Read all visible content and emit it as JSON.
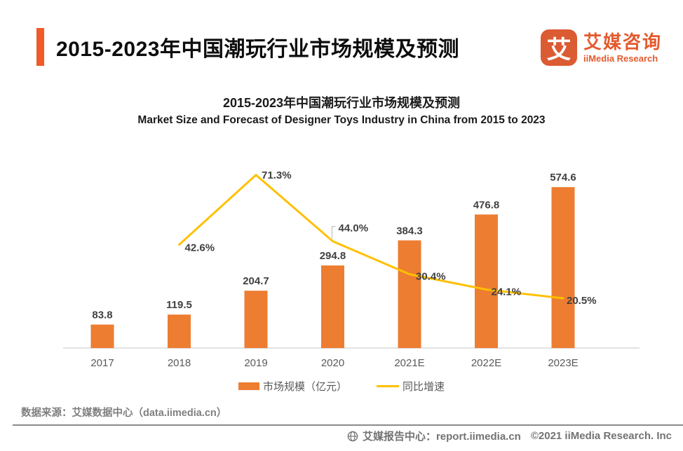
{
  "header": {
    "title": "2015-2023年中国潮玩行业市场规模及预测",
    "accent_color": "#F15A29",
    "logo": {
      "mark": "艾",
      "mark_color": "#DB5B33",
      "name_cn": "艾媒咨询",
      "name_en": "iiMedia Research",
      "text_color": "#E35A2E"
    }
  },
  "chart": {
    "title_cn": "2015-2023年中国潮玩行业市场规模及预测",
    "title_en": "Market Size and Forecast of Designer Toys Industry in China from 2015 to 2023",
    "legend": [
      {
        "label": "市场规模（亿元）",
        "type": "bar",
        "color": "#ED7D31"
      },
      {
        "label": "同比增速",
        "type": "line",
        "color": "#FFC000"
      }
    ]
  },
  "chart_data": {
    "type": "bar+line",
    "categories": [
      "2017",
      "2018",
      "2019",
      "2020",
      "2021E",
      "2022E",
      "2023E"
    ],
    "series": [
      {
        "name": "市场规模（亿元）",
        "type": "bar",
        "color": "#ED7D31",
        "values": [
          83.8,
          119.5,
          204.7,
          294.8,
          384.3,
          476.8,
          574.6
        ],
        "ylim": [
          0,
          650
        ],
        "unit": "亿元"
      },
      {
        "name": "同比增速",
        "type": "line",
        "color": "#FFC000",
        "values": [
          null,
          42.6,
          71.3,
          44.0,
          30.4,
          24.1,
          20.5
        ],
        "ylim": [
          0,
          75
        ],
        "unit": "%"
      }
    ],
    "title": "2015-2023年中国潮玩行业市场规模及预测",
    "xlabel": "",
    "ylabel": "",
    "grid": false,
    "legend_position": "bottom",
    "value_labels": true
  },
  "footer": {
    "source": "数据来源：艾媒数据中心（data.iimedia.cn）",
    "report_center": "艾媒报告中心：report.iimedia.cn",
    "copyright": "©2021  iiMedia Research. Inc"
  }
}
